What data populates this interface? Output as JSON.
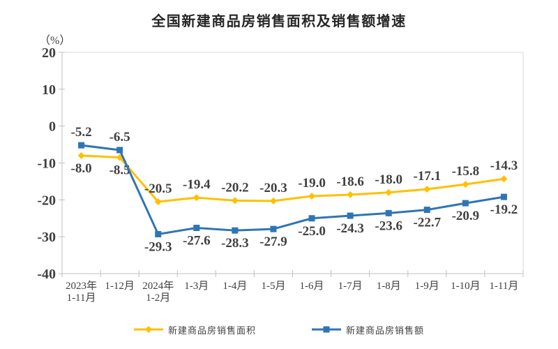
{
  "title": "全国新建商品房销售面积及销售额增速",
  "unit_label": "（%）",
  "chart_data": {
    "type": "line",
    "categories": [
      "2023年\n1-11月",
      "1-12月",
      "2024年\n1-2月",
      "1-3月",
      "1-4月",
      "1-5月",
      "1-6月",
      "1-7月",
      "1-8月",
      "1-9月",
      "1-10月",
      "1-11月"
    ],
    "series": [
      {
        "name": "新建商品房销售面积",
        "color": "#FFC000",
        "marker": "diamond",
        "values": [
          -8.0,
          -8.5,
          -20.5,
          -19.4,
          -20.2,
          -20.3,
          -19.0,
          -18.6,
          -18.0,
          -17.1,
          -15.8,
          -14.3
        ],
        "label_side": [
          "below",
          "below",
          "above",
          "above",
          "above",
          "above",
          "above",
          "above",
          "above",
          "above",
          "above",
          "above"
        ]
      },
      {
        "name": "新建商品房销售额",
        "color": "#2E75B6",
        "marker": "square",
        "values": [
          -5.2,
          -6.5,
          -29.3,
          -27.6,
          -28.3,
          -27.9,
          -25.0,
          -24.3,
          -23.6,
          -22.7,
          -20.9,
          -19.2
        ],
        "label_side": [
          "above",
          "above",
          "below",
          "below",
          "below",
          "below",
          "below",
          "below",
          "below",
          "below",
          "below",
          "below"
        ]
      }
    ],
    "ylabel": "（%）",
    "ylim": [
      -40,
      20
    ],
    "yticks": [
      20,
      10,
      0,
      -10,
      -20,
      -30,
      -40
    ],
    "grid": false,
    "legend_position": "bottom",
    "axis_color": "#BFBFBF",
    "border_color": "#D9D9D9",
    "text_color": "#404040"
  }
}
